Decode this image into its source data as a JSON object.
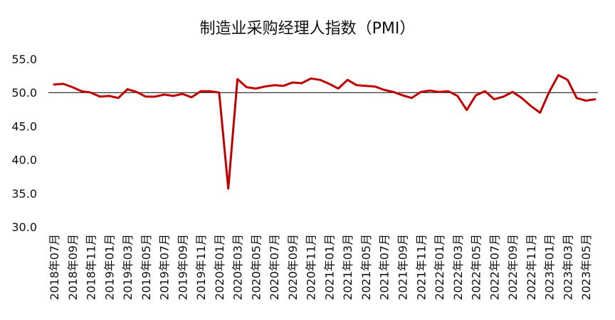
{
  "chart_data": {
    "type": "line",
    "title": "制造业采购经理人指数（PMI）",
    "xlabel": "",
    "ylabel": "",
    "ylim": [
      30.0,
      55.0
    ],
    "yticks": [
      "55.0",
      "50.0",
      "45.0",
      "40.0",
      "35.0",
      "30.0"
    ],
    "reference_line": 50.0,
    "grid": false,
    "legend": "none",
    "line_color": "#c00000",
    "x": [
      "2018年07月",
      "2018年08月",
      "2018年09月",
      "2018年10月",
      "2018年11月",
      "2018年12月",
      "2019年01月",
      "2019年02月",
      "2019年03月",
      "2019年04月",
      "2019年05月",
      "2019年06月",
      "2019年07月",
      "2019年08月",
      "2019年09月",
      "2019年10月",
      "2019年11月",
      "2019年12月",
      "2020年01月",
      "2020年02月",
      "2020年03月",
      "2020年04月",
      "2020年05月",
      "2020年06月",
      "2020年07月",
      "2020年08月",
      "2020年09月",
      "2020年10月",
      "2020年11月",
      "2020年12月",
      "2021年01月",
      "2021年02月",
      "2021年03月",
      "2021年04月",
      "2021年05月",
      "2021年06月",
      "2021年07月",
      "2021年08月",
      "2021年09月",
      "2021年10月",
      "2021年11月",
      "2021年12月",
      "2022年01月",
      "2022年02月",
      "2022年03月",
      "2022年04月",
      "2022年05月",
      "2022年06月",
      "2022年07月",
      "2022年08月",
      "2022年09月",
      "2022年10月",
      "2022年11月",
      "2022年12月",
      "2023年01月",
      "2023年02月",
      "2023年03月",
      "2023年04月",
      "2023年05月",
      "2023年06月"
    ],
    "tick_labels": [
      "2018年07月",
      "2018年09月",
      "2018年11月",
      "2019年01月",
      "2019年03月",
      "2019年05月",
      "2019年07月",
      "2019年09月",
      "2019年11月",
      "2020年01月",
      "2020年03月",
      "2020年05月",
      "2020年07月",
      "2020年09月",
      "2020年11月",
      "2021年01月",
      "2021年03月",
      "2021年05月",
      "2021年07月",
      "2021年09月",
      "2021年11月",
      "2022年01月",
      "2022年03月",
      "2022年05月",
      "2022年07月",
      "2022年09月",
      "2022年11月",
      "2023年01月",
      "2023年03月",
      "2023年05月"
    ],
    "series": [
      {
        "values": [
          51.2,
          51.3,
          50.8,
          50.2,
          50.0,
          49.4,
          49.5,
          49.2,
          50.5,
          50.1,
          49.4,
          49.4,
          49.7,
          49.5,
          49.8,
          49.3,
          50.2,
          50.2,
          50.0,
          35.7,
          52.0,
          50.8,
          50.6,
          50.9,
          51.1,
          51.0,
          51.5,
          51.4,
          52.1,
          51.9,
          51.3,
          50.6,
          51.9,
          51.1,
          51.0,
          50.9,
          50.4,
          50.1,
          49.6,
          49.2,
          50.1,
          50.3,
          50.1,
          50.2,
          49.5,
          47.4,
          49.6,
          50.2,
          49.0,
          49.4,
          50.1,
          49.2,
          48.0,
          47.0,
          50.1,
          52.6,
          51.9,
          49.2,
          48.8,
          49.0
        ]
      }
    ]
  }
}
